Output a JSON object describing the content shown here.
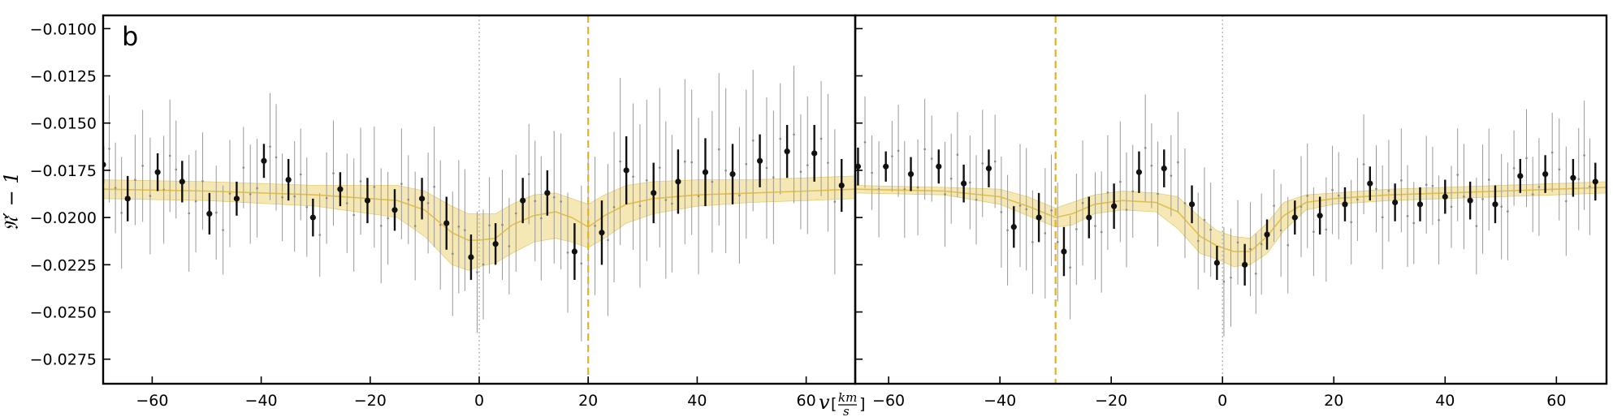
{
  "chart_data": {
    "type": "scatter",
    "panel_label": "b",
    "ylabel": "𝔑′ − 1",
    "xlabel_var": "v",
    "xlabel_unit_numerator": "km",
    "xlabel_unit_denominator": "s",
    "ylim": [
      -0.0288,
      -0.0093
    ],
    "yticks": [
      -0.01,
      -0.0125,
      -0.015,
      -0.0175,
      -0.02,
      -0.0225,
      -0.025,
      -0.0275
    ],
    "ytick_labels": [
      "−0.0100",
      "−0.0125",
      "−0.0150",
      "−0.0175",
      "−0.0200",
      "−0.0225",
      "−0.0250",
      "−0.0275"
    ],
    "grid": false,
    "colors": {
      "model": "#d9b43a",
      "band": "#efd983",
      "marker": "#111111",
      "raw": "#999999",
      "reference": "#bbbbbb",
      "axis": "#000000"
    },
    "panels": [
      {
        "name": "left",
        "xlim": [
          -69,
          69
        ],
        "xticks": [
          -60,
          -40,
          -20,
          0,
          20,
          40,
          60
        ],
        "xtick_labels": [
          "−60",
          "−40",
          "−20",
          "0",
          "20",
          "40",
          "60"
        ],
        "zero_line": 0,
        "planet_line": 20,
        "binned": {
          "x": [
            -69,
            -64.5,
            -59,
            -54.5,
            -49.5,
            -44.5,
            -39.5,
            -35,
            -30.5,
            -25.5,
            -20.5,
            -15.5,
            -10.5,
            -6,
            -1.5,
            3,
            8,
            12.5,
            17.5,
            22.5,
            27,
            32,
            36.5,
            41.5,
            46.5,
            51.5,
            56.5,
            61.5,
            66.5
          ],
          "y": [
            -0.0172,
            -0.019,
            -0.0176,
            -0.0181,
            -0.0198,
            -0.019,
            -0.017,
            -0.018,
            -0.02,
            -0.0185,
            -0.0191,
            -0.0196,
            -0.019,
            -0.0203,
            -0.0221,
            -0.0214,
            -0.0191,
            -0.0187,
            -0.0218,
            -0.0208,
            -0.0175,
            -0.0187,
            -0.0181,
            -0.0176,
            -0.0177,
            -0.017,
            -0.0165,
            -0.0166,
            -0.0183
          ],
          "err": [
            0.001,
            0.0012,
            0.001,
            0.0011,
            0.0011,
            0.0009,
            0.0009,
            0.0011,
            0.001,
            0.0009,
            0.0012,
            0.0011,
            0.0011,
            0.0014,
            0.0012,
            0.0011,
            0.0012,
            0.0012,
            0.0015,
            0.0017,
            0.0018,
            0.0016,
            0.0017,
            0.0018,
            0.0016,
            0.0014,
            0.0014,
            0.0015,
            0.0014
          ]
        },
        "model": {
          "x": [
            -69,
            -50,
            -30,
            -15,
            -10,
            -5,
            -2,
            0,
            3,
            6,
            10,
            14,
            17,
            20,
            23,
            27,
            32,
            40,
            50,
            60,
            69
          ],
          "y": [
            -0.0185,
            -0.0186,
            -0.0188,
            -0.0191,
            -0.0196,
            -0.0208,
            -0.0212,
            -0.0212,
            -0.0211,
            -0.0204,
            -0.0199,
            -0.0197,
            -0.02,
            -0.0205,
            -0.0199,
            -0.0193,
            -0.019,
            -0.0188,
            -0.0187,
            -0.0186,
            -0.0185
          ],
          "lower": [
            -0.019,
            -0.0191,
            -0.0194,
            -0.02,
            -0.021,
            -0.0225,
            -0.0228,
            -0.0226,
            -0.0224,
            -0.0219,
            -0.0213,
            -0.0211,
            -0.0213,
            -0.0216,
            -0.0211,
            -0.0203,
            -0.0198,
            -0.0194,
            -0.0192,
            -0.0191,
            -0.019
          ],
          "upper": [
            -0.018,
            -0.0181,
            -0.0183,
            -0.0183,
            -0.0186,
            -0.0194,
            -0.0198,
            -0.0198,
            -0.0198,
            -0.0193,
            -0.0188,
            -0.0187,
            -0.019,
            -0.0193,
            -0.0188,
            -0.0183,
            -0.0181,
            -0.018,
            -0.018,
            -0.0179,
            -0.0178
          ]
        }
      },
      {
        "name": "right",
        "xlim": [
          -66,
          69
        ],
        "xticks": [
          -60,
          -40,
          -20,
          0,
          20,
          40,
          60
        ],
        "xtick_labels": [
          "−60",
          "−40",
          "−20",
          "0",
          "20",
          "40",
          "60"
        ],
        "zero_line": 0,
        "planet_line": -30,
        "binned": {
          "x": [
            -65.5,
            -60.5,
            -56,
            -51,
            -46.5,
            -42,
            -37.5,
            -33,
            -28.5,
            -24,
            -19.5,
            -15,
            -10.5,
            -5.5,
            -1,
            4,
            8,
            13,
            17.5,
            22,
            26.5,
            31,
            35.5,
            40,
            44.5,
            49,
            53.5,
            58,
            63,
            67
          ],
          "y": [
            -0.0173,
            -0.0173,
            -0.0177,
            -0.0173,
            -0.0182,
            -0.0174,
            -0.0205,
            -0.02,
            -0.0218,
            -0.02,
            -0.0194,
            -0.0176,
            -0.0174,
            -0.0193,
            -0.0224,
            -0.0225,
            -0.0209,
            -0.02,
            -0.0199,
            -0.0193,
            -0.0182,
            -0.0192,
            -0.0193,
            -0.0189,
            -0.0191,
            -0.0193,
            -0.0178,
            -0.0177,
            -0.0179,
            -0.0181
          ],
          "err": [
            0.001,
            0.0008,
            0.0009,
            0.0009,
            0.001,
            0.001,
            0.0011,
            0.0013,
            0.0013,
            0.0011,
            0.0012,
            0.0011,
            0.001,
            0.001,
            0.0009,
            0.0011,
            0.0008,
            0.0009,
            0.001,
            0.0009,
            0.0009,
            0.001,
            0.0009,
            0.0009,
            0.001,
            0.001,
            0.0009,
            0.001,
            0.001,
            0.001
          ]
        },
        "model": {
          "x": [
            -66,
            -50,
            -40,
            -35,
            -30,
            -27,
            -23,
            -18,
            -12,
            -8,
            -4,
            -1,
            2,
            5,
            8,
            11,
            15,
            20,
            30,
            40,
            50,
            60,
            69
          ],
          "y": [
            -0.0185,
            -0.0186,
            -0.0189,
            -0.0194,
            -0.02,
            -0.0198,
            -0.0193,
            -0.0191,
            -0.0192,
            -0.0197,
            -0.021,
            -0.0215,
            -0.0218,
            -0.0218,
            -0.021,
            -0.0199,
            -0.0192,
            -0.019,
            -0.0188,
            -0.0187,
            -0.0186,
            -0.0185,
            -0.0184
          ],
          "lower": [
            -0.0187,
            -0.0188,
            -0.0193,
            -0.0199,
            -0.0205,
            -0.0204,
            -0.0198,
            -0.0196,
            -0.0197,
            -0.0206,
            -0.0219,
            -0.0222,
            -0.0226,
            -0.0225,
            -0.0219,
            -0.0207,
            -0.0196,
            -0.0193,
            -0.0191,
            -0.019,
            -0.0189,
            -0.0188,
            -0.0187
          ],
          "upper": [
            -0.0183,
            -0.0184,
            -0.0185,
            -0.0189,
            -0.0195,
            -0.0192,
            -0.0188,
            -0.0186,
            -0.0187,
            -0.0189,
            -0.02,
            -0.0207,
            -0.021,
            -0.0211,
            -0.0203,
            -0.0192,
            -0.0188,
            -0.0187,
            -0.0185,
            -0.0184,
            -0.0183,
            -0.0182,
            -0.0181
          ]
        }
      }
    ]
  }
}
